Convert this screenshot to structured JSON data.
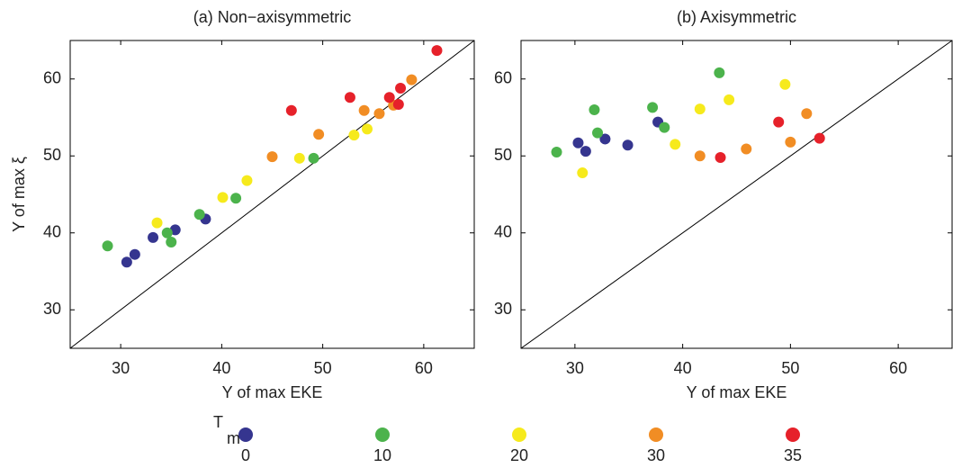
{
  "chart_data": [
    {
      "type": "scatter",
      "title": "(a) Non−axisymmetric",
      "xlabel": "Y of max EKE",
      "ylabel": "Y of max ξ",
      "xlim": [
        25,
        65
      ],
      "ylim": [
        25,
        65
      ],
      "xticks": [
        30,
        40,
        50,
        60
      ],
      "yticks": [
        30,
        40,
        50,
        60
      ],
      "series": [
        {
          "name": "0",
          "color": "#35358f",
          "x": [
            30.6,
            31.4,
            33.2,
            35.4,
            38.4
          ],
          "values": [
            36.2,
            37.2,
            39.4,
            40.4,
            41.8
          ]
        },
        {
          "name": "10",
          "color": "#4cb34c",
          "x": [
            28.7,
            34.6,
            35.0,
            37.8,
            41.4,
            49.1
          ],
          "values": [
            38.3,
            40.0,
            38.8,
            42.4,
            44.5,
            49.7
          ]
        },
        {
          "name": "20",
          "color": "#f6ea1c",
          "x": [
            33.6,
            40.1,
            42.5,
            47.7,
            53.1,
            54.4
          ],
          "values": [
            41.3,
            44.6,
            46.8,
            49.7,
            52.7,
            53.5
          ]
        },
        {
          "name": "30",
          "color": "#f18d24",
          "x": [
            45.0,
            49.6,
            54.1,
            55.6,
            57.0,
            58.8
          ],
          "values": [
            49.9,
            52.8,
            55.9,
            55.5,
            56.6,
            59.9
          ]
        },
        {
          "name": "35",
          "color": "#e6212a",
          "x": [
            46.9,
            52.7,
            56.6,
            57.5,
            57.7,
            61.3
          ],
          "values": [
            55.9,
            57.6,
            57.6,
            56.7,
            58.8,
            63.7
          ]
        }
      ]
    },
    {
      "type": "scatter",
      "title": "(b) Axisymmetric",
      "xlabel": "Y of max EKE",
      "xlim": [
        25,
        65
      ],
      "ylim": [
        25,
        65
      ],
      "xticks": [
        30,
        40,
        50,
        60
      ],
      "yticks": [
        30,
        40,
        50,
        60
      ],
      "series": [
        {
          "name": "0",
          "color": "#35358f",
          "x": [
            30.3,
            31.0,
            32.8,
            34.9,
            37.7
          ],
          "values": [
            51.7,
            50.6,
            52.2,
            51.4,
            54.4
          ]
        },
        {
          "name": "10",
          "color": "#4cb34c",
          "x": [
            28.3,
            31.8,
            32.1,
            37.2,
            38.3,
            43.4
          ],
          "values": [
            50.5,
            56.0,
            53.0,
            56.3,
            53.7,
            60.8
          ]
        },
        {
          "name": "20",
          "color": "#f6ea1c",
          "x": [
            30.7,
            39.3,
            41.6,
            44.3,
            49.5
          ],
          "values": [
            47.8,
            51.5,
            56.1,
            57.3,
            59.3
          ]
        },
        {
          "name": "30",
          "color": "#f18d24",
          "x": [
            41.6,
            45.9,
            50.0,
            51.5
          ],
          "values": [
            50.0,
            50.9,
            51.8,
            55.5
          ]
        },
        {
          "name": "35",
          "color": "#e6212a",
          "x": [
            43.5,
            48.9,
            52.7
          ],
          "values": [
            49.8,
            54.4,
            52.3
          ]
        }
      ]
    }
  ],
  "legend_title": "T",
  "legend_title_sub": "m"
}
